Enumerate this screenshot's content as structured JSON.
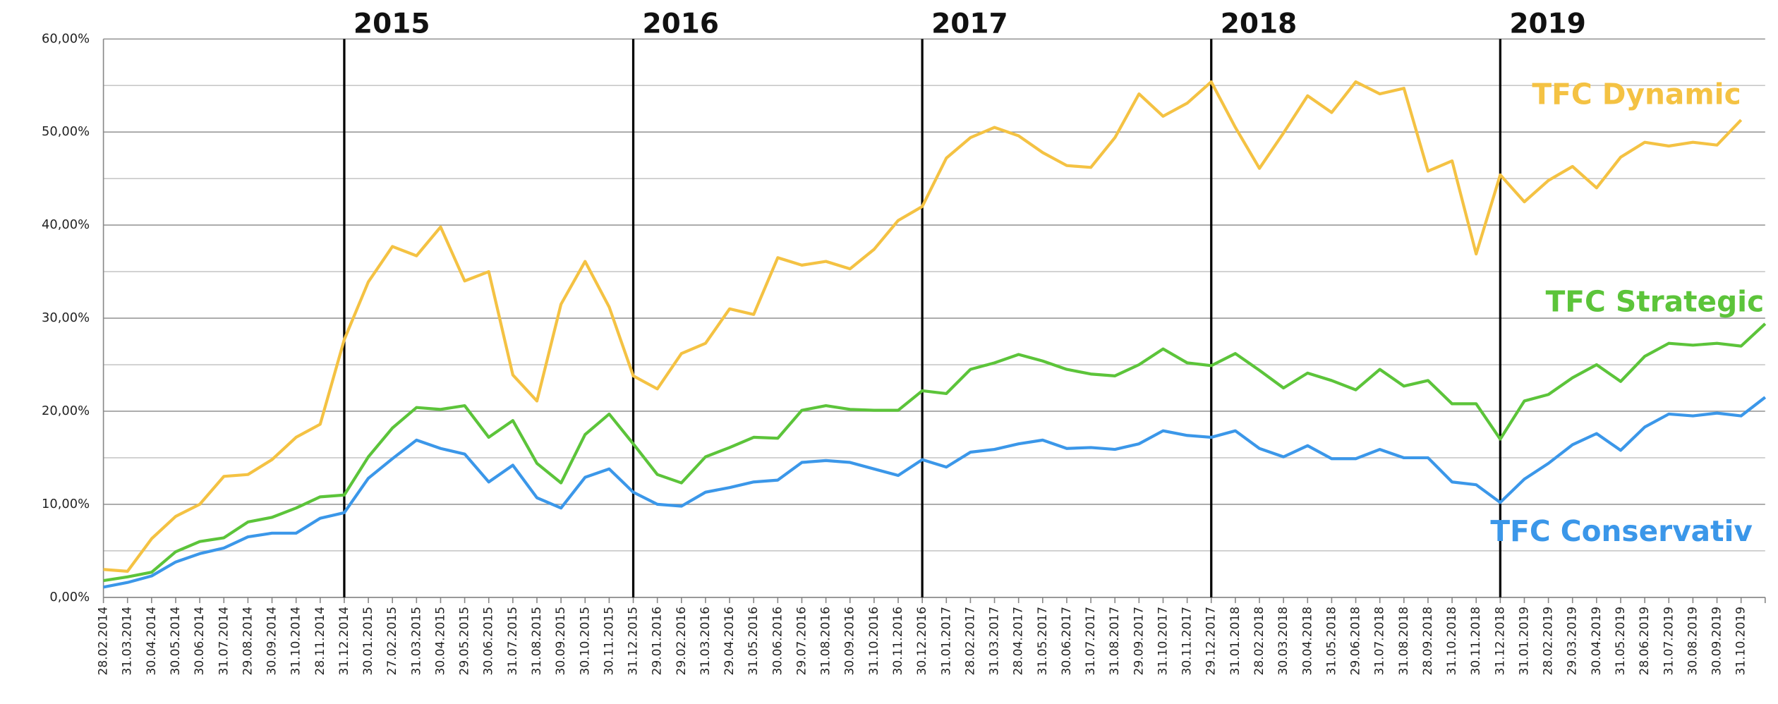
{
  "chart_data": {
    "type": "line",
    "categories": [
      "28.02.2014",
      "31.03.2014",
      "30.04.2014",
      "30.05.2014",
      "30.06.2014",
      "31.07.2014",
      "29.08.2014",
      "30.09.2014",
      "31.10.2014",
      "28.11.2014",
      "31.12.2014",
      "30.01.2015",
      "27.02.2015",
      "31.03.2015",
      "30.04.2015",
      "29.05.2015",
      "30.06.2015",
      "31.07.2015",
      "31.08.2015",
      "30.09.2015",
      "30.10.2015",
      "30.11.2015",
      "31.12.2015",
      "29.01.2016",
      "29.02.2016",
      "31.03.2016",
      "29.04.2016",
      "31.05.2016",
      "30.06.2016",
      "29.07.2016",
      "31.08.2016",
      "30.09.2016",
      "31.10.2016",
      "30.11.2016",
      "30.12.2016",
      "31.01.2017",
      "28.02.2017",
      "31.03.2017",
      "28.04.2017",
      "31.05.2017",
      "30.06.2017",
      "31.07.2017",
      "31.08.2017",
      "29.09.2017",
      "31.10.2017",
      "30.11.2017",
      "29.12.2017",
      "31.01.2018",
      "28.02.2018",
      "30.03.2018",
      "30.04.2018",
      "31.05.2018",
      "29.06.2018",
      "31.07.2018",
      "31.08.2018",
      "28.09.2018",
      "31.10.2018",
      "30.11.2018",
      "31.12.2018",
      "31.01.2019",
      "28.02.2019",
      "29.03.2019",
      "30.04.2019",
      "31.05.2019",
      "28.06.2019",
      "31.07.2019",
      "30.08.2019",
      "30.09.2019",
      "31.10.2019",
      null
    ],
    "series": [
      {
        "name": "TFC Dynamic",
        "color": "#f4c243",
        "values": [
          3.0,
          2.8,
          6.3,
          8.7,
          10.0,
          13.0,
          13.2,
          14.8,
          17.2,
          18.6,
          27.7,
          33.9,
          37.7,
          36.7,
          39.8,
          34.0,
          35.0,
          23.9,
          21.1,
          31.5,
          36.1,
          31.2,
          23.8,
          22.4,
          26.2,
          27.3,
          31.0,
          30.4,
          36.5,
          35.7,
          36.1,
          35.3,
          37.4,
          40.5,
          42.0,
          47.2,
          49.4,
          50.5,
          49.6,
          47.8,
          46.4,
          46.2,
          49.4,
          54.1,
          51.7,
          53.1,
          55.4,
          50.5,
          46.1,
          49.9,
          53.9,
          52.1,
          55.4,
          54.1,
          54.7,
          45.8,
          46.9,
          36.9,
          45.4,
          42.5,
          44.8,
          46.3,
          44.0,
          47.3,
          48.9,
          48.5,
          48.9,
          48.6,
          51.3,
          null
        ]
      },
      {
        "name": "TFC Strategic",
        "color": "#5cc43a",
        "values": [
          1.8,
          2.2,
          2.7,
          4.9,
          6.0,
          6.4,
          8.1,
          8.6,
          9.6,
          10.8,
          11.0,
          15.1,
          18.2,
          20.4,
          20.2,
          20.6,
          17.2,
          19.0,
          14.4,
          12.3,
          17.5,
          19.7,
          16.5,
          13.2,
          12.3,
          15.1,
          16.1,
          17.2,
          17.1,
          20.1,
          20.6,
          20.2,
          20.1,
          20.1,
          22.2,
          21.9,
          24.5,
          25.2,
          26.1,
          25.4,
          24.5,
          24.0,
          23.8,
          25.0,
          26.7,
          25.2,
          24.9,
          26.2,
          24.4,
          22.5,
          24.1,
          23.3,
          22.3,
          24.5,
          22.7,
          23.3,
          20.8,
          20.8,
          17.0,
          21.1,
          21.8,
          23.6,
          25.0,
          23.2,
          25.9,
          27.3,
          27.1,
          27.3,
          27.0,
          29.4
        ]
      },
      {
        "name": "TFC Conservativ",
        "color": "#3b97e9",
        "values": [
          1.1,
          1.6,
          2.3,
          3.8,
          4.7,
          5.3,
          6.5,
          6.9,
          6.9,
          8.5,
          9.1,
          12.8,
          14.9,
          16.9,
          16.0,
          15.4,
          12.4,
          14.2,
          10.7,
          9.6,
          12.9,
          13.8,
          11.3,
          10.0,
          9.8,
          11.3,
          11.8,
          12.4,
          12.6,
          14.5,
          14.7,
          14.5,
          13.8,
          13.1,
          14.8,
          14.0,
          15.6,
          15.9,
          16.5,
          16.9,
          16.0,
          16.1,
          15.9,
          16.5,
          17.9,
          17.4,
          17.2,
          17.9,
          16.0,
          15.1,
          16.3,
          14.9,
          14.9,
          15.9,
          15.0,
          15.0,
          12.4,
          12.1,
          10.2,
          12.7,
          14.4,
          16.4,
          17.6,
          15.8,
          18.3,
          19.7,
          19.5,
          19.8,
          19.5,
          21.5
        ]
      }
    ],
    "ylim": [
      0,
      60
    ],
    "yticks": [
      {
        "value": 0,
        "label": "0,00%"
      },
      {
        "value": 10,
        "label": "10,00%"
      },
      {
        "value": 20,
        "label": "20,00%"
      },
      {
        "value": 30,
        "label": "30,00%"
      },
      {
        "value": 40,
        "label": "40,00%"
      },
      {
        "value": 50,
        "label": "50,00%"
      },
      {
        "value": 60,
        "label": "60,00%"
      }
    ],
    "yminor_ticks": [
      5,
      15,
      25,
      35,
      45,
      55
    ],
    "grid": true,
    "annotations": [
      {
        "label": "2015",
        "at": "31.12.2014"
      },
      {
        "label": "2016",
        "at": "31.12.2015"
      },
      {
        "label": "2017",
        "at": "30.12.2016"
      },
      {
        "label": "2018",
        "at": "29.12.2017"
      },
      {
        "label": "2019",
        "at": "31.12.2018"
      }
    ]
  }
}
